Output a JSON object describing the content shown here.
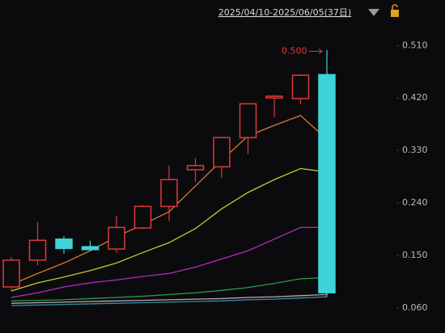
{
  "chart_data": {
    "type": "candlestick",
    "title": "2025/04/10-2025/06/05(37日)",
    "annotation": {
      "label": "0.500",
      "value": 0.5
    },
    "categories": [
      null,
      null,
      null,
      null,
      null,
      null,
      null,
      null,
      null,
      null,
      null,
      null,
      null
    ],
    "open": [
      0.096,
      0.142,
      0.178,
      0.165,
      0.161,
      0.197,
      0.234,
      0.297,
      0.302,
      0.352,
      0.42,
      0.419,
      0.46
    ],
    "close": [
      0.142,
      0.176,
      0.162,
      0.16,
      0.198,
      0.234,
      0.28,
      0.304,
      0.352,
      0.41,
      0.423,
      0.459,
      0.086
    ],
    "high": [
      0.147,
      0.207,
      0.183,
      0.175,
      0.218,
      0.236,
      0.304,
      0.317,
      0.354,
      0.412,
      0.425,
      0.461,
      0.502
    ],
    "low": [
      0.089,
      0.133,
      0.153,
      0.158,
      0.155,
      0.195,
      0.209,
      0.276,
      0.283,
      0.324,
      0.387,
      0.41,
      0.079
    ],
    "up_color": "#e03a3a",
    "down_color": "#3fd3d8",
    "series": [
      {
        "color": "#d9772f",
        "values": [
          0.1,
          0.119,
          0.137,
          0.158,
          0.182,
          0.203,
          0.225,
          0.269,
          0.313,
          0.355,
          0.373,
          0.39,
          0.349
        ]
      },
      {
        "color": "#c9c832",
        "values": [
          0.089,
          0.103,
          0.113,
          0.124,
          0.137,
          0.155,
          0.172,
          0.196,
          0.23,
          0.258,
          0.28,
          0.299,
          0.293
        ]
      },
      {
        "color": "#b52cb8",
        "values": [
          0.078,
          0.086,
          0.096,
          0.103,
          0.108,
          0.114,
          0.119,
          0.13,
          0.144,
          0.158,
          0.178,
          0.198,
          0.198
        ]
      },
      {
        "color": "#2e9a4e",
        "values": [
          0.072,
          0.073,
          0.074,
          0.076,
          0.078,
          0.08,
          0.083,
          0.086,
          0.09,
          0.095,
          0.102,
          0.11,
          0.112
        ]
      },
      {
        "color": "#b9a9b5",
        "values": [
          0.068,
          0.069,
          0.07,
          0.071,
          0.072,
          0.073,
          0.074,
          0.075,
          0.076,
          0.078,
          0.079,
          0.081,
          0.083
        ]
      },
      {
        "color": "#3a8fa8",
        "values": [
          0.064,
          0.065,
          0.066,
          0.067,
          0.068,
          0.069,
          0.07,
          0.071,
          0.072,
          0.074,
          0.075,
          0.077,
          0.079
        ]
      }
    ],
    "ylim": [
      0.017,
      0.588
    ],
    "yticks": [
      {
        "value": 0.06,
        "label": "0.060"
      },
      {
        "value": 0.15,
        "label": "0.150"
      },
      {
        "value": 0.24,
        "label": "0.240"
      },
      {
        "value": 0.33,
        "label": "0.330"
      },
      {
        "value": 0.42,
        "label": "0.420"
      },
      {
        "value": 0.51,
        "label": "0.510"
      }
    ]
  }
}
